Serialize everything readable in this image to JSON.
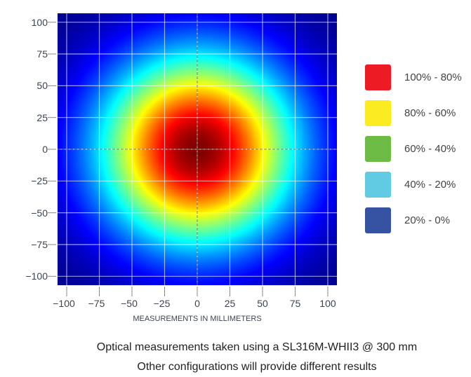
{
  "chart_data": {
    "type": "heatmap",
    "colormap": "jet",
    "xlabel": "MEASUREMENTS IN MILLIMETERS",
    "ylabel": "",
    "xlim": [
      -107,
      107
    ],
    "ylim": [
      -107,
      107
    ],
    "x_ticks": [
      "−100",
      "−75",
      "−50",
      "−25",
      "0",
      "25",
      "50",
      "75",
      "100"
    ],
    "y_ticks": [
      "100",
      "75",
      "50",
      "25",
      "0",
      "−25",
      "−50",
      "−75",
      "−100"
    ],
    "x_tick_values": [
      -100,
      -75,
      -50,
      -25,
      0,
      25,
      50,
      75,
      100
    ],
    "y_tick_values": [
      100,
      75,
      50,
      25,
      0,
      -25,
      -50,
      -75,
      -100
    ],
    "grid": true,
    "peak": {
      "x": 0,
      "y": 0,
      "value_percent": 100
    },
    "legend_placement": "right",
    "legend": [
      {
        "label": "100% - 80%",
        "color": "#ed1c24"
      },
      {
        "label": "80% - 60%",
        "color": "#fbec21"
      },
      {
        "label": "60% - 40%",
        "color": "#6cbb45"
      },
      {
        "label": "40% - 20%",
        "color": "#62cbe4"
      },
      {
        "label": "20% - 0%",
        "color": "#3552a3"
      }
    ]
  },
  "caption": {
    "line1": "Optical measurements taken using a SL316M-WHII3 @ 300 mm",
    "line2": "Other configurations will provide different results"
  }
}
